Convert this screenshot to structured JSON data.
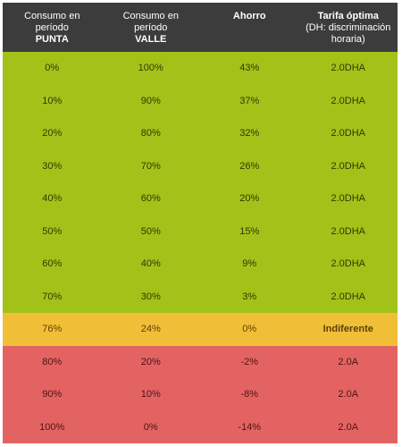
{
  "headers": [
    {
      "line1": "Consumo en",
      "line2": "período",
      "line3": "PUNTA"
    },
    {
      "line1": "Consumo en",
      "line2": "período",
      "line3": "VALLE"
    },
    {
      "line1": "Ahorro",
      "line2": "",
      "line3": ""
    },
    {
      "line1": "Tarifa óptima",
      "line2": "(DH: discriminación",
      "line3": "horaria)"
    }
  ],
  "rows": [
    {
      "punta": "0%",
      "valle": "100%",
      "ahorro": "43%",
      "tarifa": "2.0DHA",
      "band": "green"
    },
    {
      "punta": "10%",
      "valle": "90%",
      "ahorro": "37%",
      "tarifa": "2.0DHA",
      "band": "green"
    },
    {
      "punta": "20%",
      "valle": "80%",
      "ahorro": "32%",
      "tarifa": "2.0DHA",
      "band": "green"
    },
    {
      "punta": "30%",
      "valle": "70%",
      "ahorro": "26%",
      "tarifa": "2.0DHA",
      "band": "green"
    },
    {
      "punta": "40%",
      "valle": "60%",
      "ahorro": "20%",
      "tarifa": "2.0DHA",
      "band": "green"
    },
    {
      "punta": "50%",
      "valle": "50%",
      "ahorro": "15%",
      "tarifa": "2.0DHA",
      "band": "green"
    },
    {
      "punta": "60%",
      "valle": "40%",
      "ahorro": "9%",
      "tarifa": "2.0DHA",
      "band": "green"
    },
    {
      "punta": "70%",
      "valle": "30%",
      "ahorro": "3%",
      "tarifa": "2.0DHA",
      "band": "green"
    },
    {
      "punta": "76%",
      "valle": "24%",
      "ahorro": "0%",
      "tarifa": "Indiferente",
      "band": "yellow"
    },
    {
      "punta": "80%",
      "valle": "20%",
      "ahorro": "-2%",
      "tarifa": "2.0A",
      "band": "red"
    },
    {
      "punta": "90%",
      "valle": "10%",
      "ahorro": "-8%",
      "tarifa": "2.0A",
      "band": "red"
    },
    {
      "punta": "100%",
      "valle": "0%",
      "ahorro": "-14%",
      "tarifa": "2.0A",
      "band": "red"
    }
  ],
  "colors": {
    "header_bg": "#3c3c3c",
    "green": "#a2c219",
    "yellow": "#f1bf37",
    "red": "#e36363"
  }
}
